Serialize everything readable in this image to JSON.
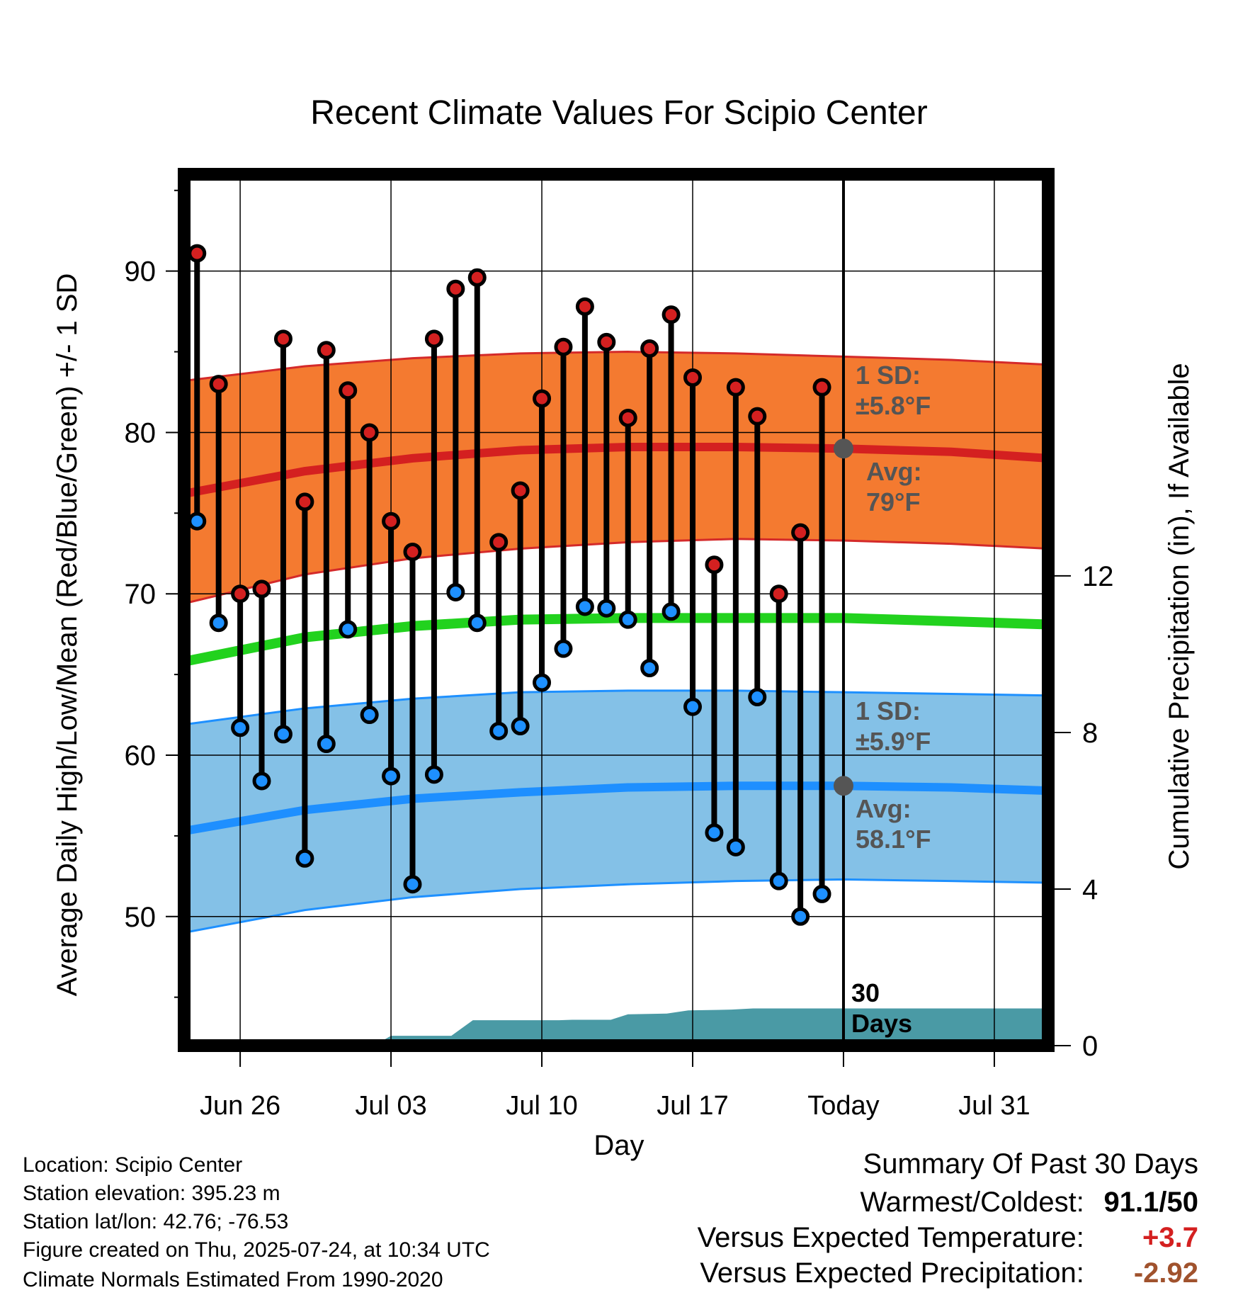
{
  "colors": {
    "high_band": "#f47a30",
    "high_band_edge": "#d42a2a",
    "high_avg": "#d42020",
    "low_band": "#84c1e7",
    "low_band_edge": "#1e90ff",
    "low_avg": "#1e8fff",
    "mean_avg": "#22d21e",
    "precip_fill": "#4a9aa5",
    "high_dot": "#d42020",
    "low_dot": "#1e90ff",
    "label_gray": "#555555",
    "pos_value": "#d42020",
    "neg_value": "#a0522d"
  },
  "chart_data": {
    "type": "line",
    "title": "Recent Climate Values For Scipio Center",
    "xlabel": "Day",
    "ylabel": "Average Daily High/Low/Mean (Red/Blue/Green) +/- 1 SD",
    "y2label": "Cumulative Precipitation (in), If Available",
    "x_tick_labels": [
      "Jun 26",
      "Jul 03",
      "Jul 10",
      "Jul 17",
      "Today",
      "Jul 31"
    ],
    "x_tick_days": [
      2,
      9,
      16,
      23,
      30,
      37
    ],
    "x_range_days": [
      -0.6,
      39.5
    ],
    "ylim": [
      42,
      96
    ],
    "y_ticks": [
      50,
      60,
      70,
      80,
      90
    ],
    "y2lim": [
      0,
      22.26
    ],
    "y2_ticks": [
      0,
      4,
      8,
      12
    ],
    "grid": true,
    "today_day": 30,
    "daily_high": [
      91.1,
      83.0,
      70.0,
      70.3,
      85.8,
      75.7,
      85.1,
      82.6,
      80.0,
      74.5,
      72.6,
      85.8,
      88.9,
      89.6,
      73.2,
      76.4,
      82.1,
      85.3,
      87.8,
      85.6,
      80.9,
      85.2,
      87.3,
      83.4,
      71.8,
      82.8,
      81.0,
      70.0,
      73.8,
      82.8
    ],
    "daily_low": [
      74.5,
      68.2,
      61.7,
      58.4,
      61.3,
      53.6,
      60.7,
      67.8,
      62.5,
      58.7,
      52.0,
      58.8,
      70.1,
      68.2,
      61.5,
      61.8,
      64.5,
      66.6,
      69.2,
      69.1,
      68.4,
      65.4,
      68.9,
      63.0,
      55.2,
      54.3,
      63.6,
      52.2,
      50.0,
      51.4
    ],
    "normal_high": {
      "day": [
        -0.6,
        5,
        10,
        15,
        20,
        25,
        30,
        35,
        39.5
      ],
      "avg": [
        76.2,
        77.6,
        78.4,
        78.9,
        79.1,
        79.1,
        79.0,
        78.8,
        78.4
      ],
      "upper": [
        83.2,
        84.1,
        84.6,
        84.9,
        85.0,
        84.9,
        84.7,
        84.5,
        84.2
      ],
      "lower": [
        69.4,
        71.2,
        72.2,
        72.8,
        73.2,
        73.4,
        73.3,
        73.1,
        72.8
      ]
    },
    "normal_mean": {
      "day": [
        -0.6,
        5,
        10,
        15,
        20,
        25,
        30,
        35,
        39.5
      ],
      "avg": [
        65.8,
        67.3,
        68.0,
        68.4,
        68.5,
        68.5,
        68.5,
        68.3,
        68.1
      ]
    },
    "normal_low": {
      "day": [
        -0.6,
        5,
        10,
        15,
        20,
        25,
        30,
        35,
        39.5
      ],
      "avg": [
        55.3,
        56.6,
        57.3,
        57.7,
        58.0,
        58.1,
        58.1,
        58.0,
        57.8
      ],
      "upper": [
        61.9,
        62.9,
        63.5,
        63.9,
        64.0,
        64.0,
        63.9,
        63.8,
        63.7
      ],
      "lower": [
        49.0,
        50.4,
        51.2,
        51.7,
        52.0,
        52.2,
        52.3,
        52.2,
        52.1
      ]
    },
    "cumulative_precip": {
      "day": [
        -0.6,
        8.2,
        9.0,
        11.8,
        12.8,
        16.8,
        17.4,
        19.2,
        20.0,
        21.8,
        22.8,
        24.8,
        25.8,
        30.0,
        39.5
      ],
      "inches": [
        0,
        0,
        0.25,
        0.25,
        0.65,
        0.65,
        0.66,
        0.66,
        0.8,
        0.82,
        0.9,
        0.92,
        0.95,
        0.95,
        0.95
      ]
    },
    "annotations": {
      "high_sd_line1": "1 SD:",
      "high_sd_line2": "±5.8°F",
      "high_avg_line1": "Avg:",
      "high_avg_line2": "79°F",
      "high_avg_value": 79.0,
      "low_sd_line1": "1 SD:",
      "low_sd_line2": "±5.9°F",
      "low_avg_line1": "Avg:",
      "low_avg_line2": "58.1°F",
      "low_avg_value": 58.1,
      "window_line1": "30",
      "window_line2": "Days"
    }
  },
  "footer": {
    "location": "Location: Scipio Center",
    "elevation": "Station elevation: 395.23 m",
    "latlon": "Station lat/lon: 42.76; -76.53",
    "created": "Figure created on Thu, 2025-07-24, at 10:34 UTC",
    "normals": "Climate Normals Estimated From 1990-2020"
  },
  "summary": {
    "heading": "Summary Of Past 30 Days",
    "warmest_label": "Warmest/Coldest:",
    "warmest_value": "91.1/50",
    "temp_label": "Versus Expected Temperature:",
    "temp_value": "+3.7",
    "precip_label": "Versus Expected Precipitation:",
    "precip_value": "-2.92"
  }
}
